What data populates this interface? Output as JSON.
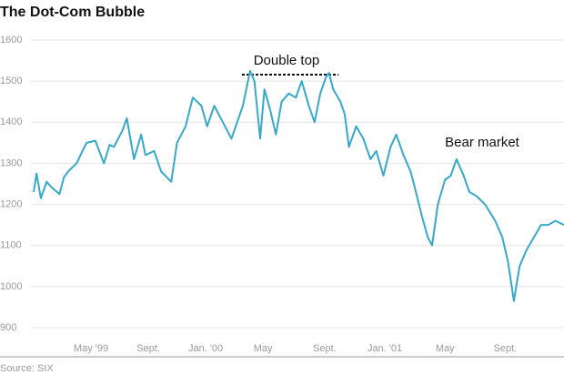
{
  "chart_data": {
    "type": "line",
    "title": "The Dot-Com Bubble",
    "source": "Source: SIX",
    "annotations": [
      "Double top",
      "Bear market"
    ],
    "xlim": [
      0,
      37
    ],
    "ylim": [
      900,
      1600
    ],
    "yticks": [
      900,
      1000,
      1100,
      1200,
      1300,
      1400,
      1500,
      1600
    ],
    "xticks": [
      {
        "value": 4,
        "label": "May '99"
      },
      {
        "value": 8,
        "label": "Sept."
      },
      {
        "value": 12,
        "label": "Jan. '00"
      },
      {
        "value": 16,
        "label": "May"
      },
      {
        "value": 20.3,
        "label": "Sept."
      },
      {
        "value": 24.5,
        "label": "Jan. '01"
      },
      {
        "value": 28.7,
        "label": "May"
      },
      {
        "value": 32.9,
        "label": "Sept."
      }
    ],
    "grid": true,
    "series": [
      {
        "color": "#36a9c9",
        "x": [
          0,
          0.2,
          0.5,
          0.9,
          1.3,
          1.8,
          2.1,
          2.4,
          3,
          3.4,
          3.7,
          4.3,
          4.9,
          5.3,
          5.6,
          6.2,
          6.5,
          7,
          7.5,
          7.8,
          8.4,
          8.9,
          9.6,
          10,
          10.6,
          11.1,
          11.7,
          12.1,
          12.6,
          13.2,
          13.8,
          14.2,
          14.6,
          15.1,
          15.4,
          15.8,
          16.1,
          16.5,
          16.9,
          17.3,
          17.8,
          18.3,
          18.7,
          19.2,
          19.6,
          20,
          20.4,
          20.6,
          20.9,
          21.4,
          21.7,
          22,
          22.5,
          23,
          23.5,
          23.9,
          24.4,
          24.9,
          25.3,
          25.8,
          26.3,
          26.6,
          27.1,
          27.5,
          27.8,
          28.2,
          28.7,
          29.1,
          29.5,
          30,
          30.4,
          30.9,
          31.5,
          32.2,
          32.7,
          33.1,
          33.5,
          33.9,
          34.4,
          34.9,
          35.4,
          35.9,
          36.4,
          37
        ],
        "values": [
          1230,
          1275,
          1215,
          1255,
          1240,
          1225,
          1265,
          1280,
          1300,
          1330,
          1350,
          1355,
          1300,
          1345,
          1340,
          1380,
          1410,
          1310,
          1370,
          1320,
          1330,
          1280,
          1255,
          1350,
          1390,
          1460,
          1440,
          1390,
          1440,
          1400,
          1360,
          1400,
          1440,
          1525,
          1500,
          1360,
          1480,
          1430,
          1370,
          1450,
          1470,
          1460,
          1500,
          1440,
          1400,
          1470,
          1510,
          1520,
          1480,
          1450,
          1420,
          1340,
          1390,
          1360,
          1310,
          1330,
          1270,
          1340,
          1370,
          1320,
          1280,
          1240,
          1170,
          1120,
          1100,
          1200,
          1260,
          1270,
          1310,
          1270,
          1230,
          1220,
          1200,
          1160,
          1120,
          1060,
          965,
          1050,
          1090,
          1120,
          1150,
          1150,
          1160,
          1150
        ]
      }
    ]
  }
}
